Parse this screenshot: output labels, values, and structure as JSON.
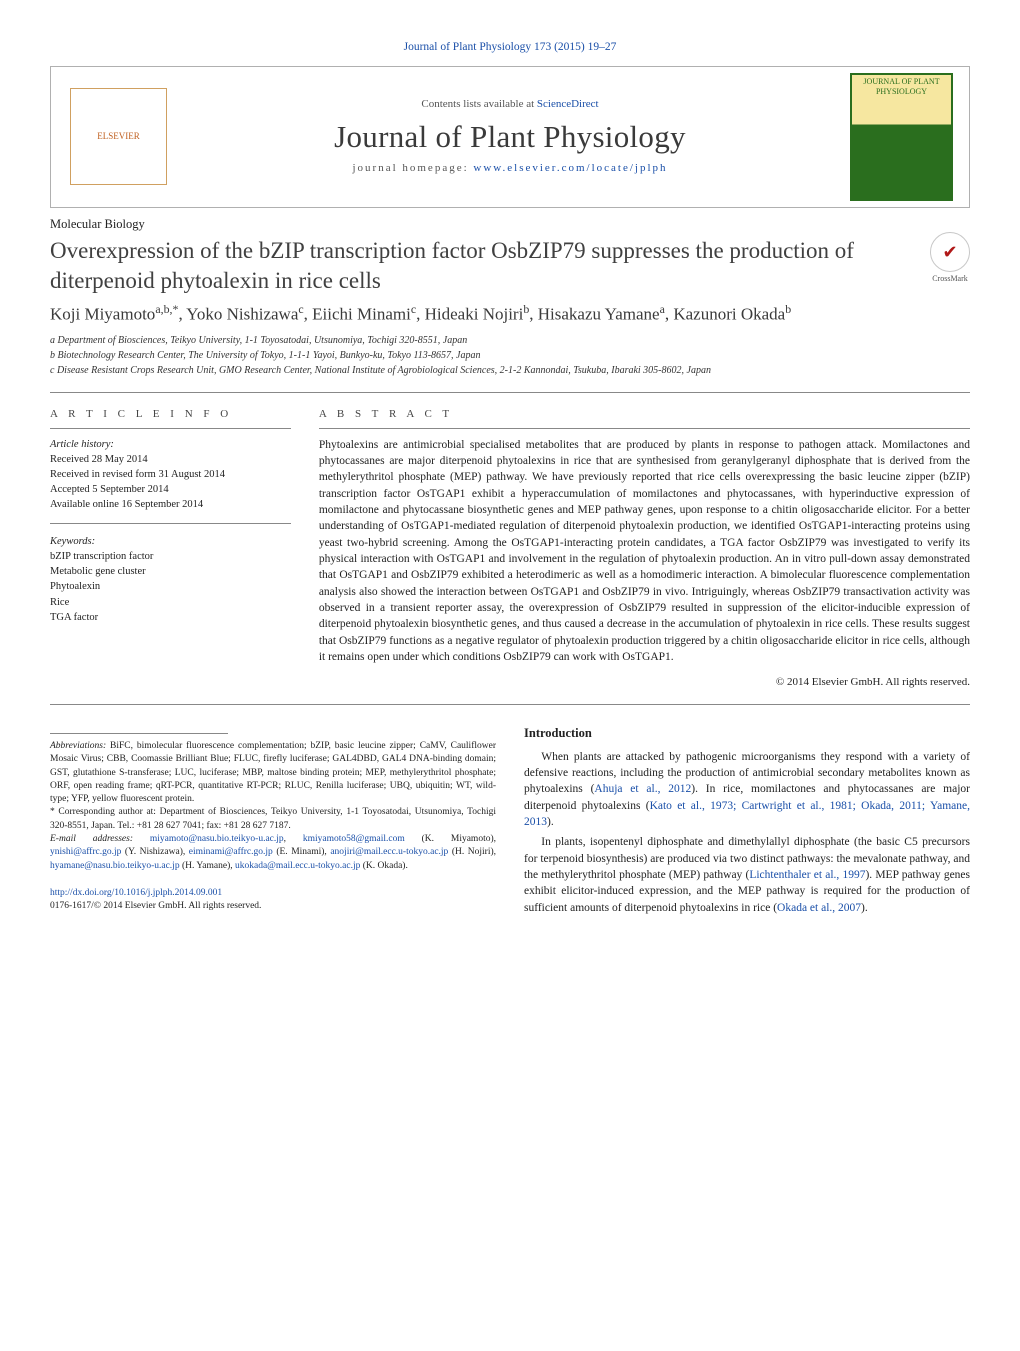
{
  "font_family_main": "Times New Roman, Georgia, serif",
  "colors": {
    "link": "#1a4fa8",
    "text": "#222222",
    "bg": "#ffffff",
    "rule": "#888888",
    "heading": "#404040",
    "journal_accent": "#2a6e1e"
  },
  "header": {
    "top_link": "Journal of Plant Physiology 173 (2015) 19–27",
    "contents_lists_prefix": "Contents lists available at ",
    "contents_lists_link": "ScienceDirect",
    "journal_title": "Journal of Plant Physiology",
    "homepage_prefix": "journal homepage: ",
    "homepage_url": "www.elsevier.com/locate/jplph",
    "publisher": "ELSEVIER",
    "cover_text": "JOURNAL OF PLANT PHYSIOLOGY"
  },
  "article": {
    "section_label": "Molecular Biology",
    "title": "Overexpression of the bZIP transcription factor OsbZIP79 suppresses the production of diterpenoid phytoalexin in rice cells",
    "crossmark": "CrossMark",
    "authors": "Koji Miyamoto",
    "authors_sup1": "a,b,*",
    "authors2": ", Yoko Nishizawa",
    "authors_sup2": "c",
    "authors3": ", Eiichi Minami",
    "authors_sup3": "c",
    "authors4": ", Hideaki Nojiri",
    "authors_sup4": "b",
    "authors5": ", Hisakazu Yamane",
    "authors_sup5": "a",
    "authors6": ", Kazunori Okada",
    "authors_sup6": "b",
    "affiliations": [
      "a Department of Biosciences, Teikyo University, 1-1 Toyosatodai, Utsunomiya, Tochigi 320-8551, Japan",
      "b Biotechnology Research Center, The University of Tokyo, 1-1-1 Yayoi, Bunkyo-ku, Tokyo 113-8657, Japan",
      "c Disease Resistant Crops Research Unit, GMO Research Center, National Institute of Agrobiological Sciences, 2-1-2 Kannondai, Tsukuba, Ibaraki 305-8602, Japan"
    ]
  },
  "article_info": {
    "section_head": "A R T I C L E   I N F O",
    "history_head": "Article history:",
    "history": [
      "Received 28 May 2014",
      "Received in revised form 31 August 2014",
      "Accepted 5 September 2014",
      "Available online 16 September 2014"
    ],
    "keywords_head": "Keywords:",
    "keywords": [
      "bZIP transcription factor",
      "Metabolic gene cluster",
      "Phytoalexin",
      "Rice",
      "TGA factor"
    ]
  },
  "abstract": {
    "section_head": "A B S T R A C T",
    "text": "Phytoalexins are antimicrobial specialised metabolites that are produced by plants in response to pathogen attack. Momilactones and phytocassanes are major diterpenoid phytoalexins in rice that are synthesised from geranylgeranyl diphosphate that is derived from the methylerythritol phosphate (MEP) pathway. We have previously reported that rice cells overexpressing the basic leucine zipper (bZIP) transcription factor OsTGAP1 exhibit a hyperaccumulation of momilactones and phytocassanes, with hyperinductive expression of momilactone and phytocassane biosynthetic genes and MEP pathway genes, upon response to a chitin oligosaccharide elicitor. For a better understanding of OsTGAP1-mediated regulation of diterpenoid phytoalexin production, we identified OsTGAP1-interacting proteins using yeast two-hybrid screening. Among the OsTGAP1-interacting protein candidates, a TGA factor OsbZIP79 was investigated to verify its physical interaction with OsTGAP1 and involvement in the regulation of phytoalexin production. An in vitro pull-down assay demonstrated that OsTGAP1 and OsbZIP79 exhibited a heterodimeric as well as a homodimeric interaction. A bimolecular fluorescence complementation analysis also showed the interaction between OsTGAP1 and OsbZIP79 in vivo. Intriguingly, whereas OsbZIP79 transactivation activity was observed in a transient reporter assay, the overexpression of OsbZIP79 resulted in suppression of the elicitor-inducible expression of diterpenoid phytoalexin biosynthetic genes, and thus caused a decrease in the accumulation of phytoalexin in rice cells. These results suggest that OsbZIP79 functions as a negative regulator of phytoalexin production triggered by a chitin oligosaccharide elicitor in rice cells, although it remains open under which conditions OsbZIP79 can work with OsTGAP1.",
    "copyright": "© 2014 Elsevier GmbH. All rights reserved."
  },
  "introduction": {
    "head": "Introduction",
    "paras": [
      {
        "text": "When plants are attacked by pathogenic microorganisms they respond with a variety of defensive reactions, including the production of antimicrobial secondary metabolites known as phytoalexins (",
        "link1": "Ahuja et al., 2012",
        "mid": "). In rice, momilactones and phytocassanes are major diterpenoid phytoalexins (",
        "link2": "Kato et al., 1973; Cartwright et al., 1981; Okada, 2011; Yamane, 2013",
        "tail": ")."
      },
      {
        "text": "In plants, isopentenyl diphosphate and dimethylallyl diphosphate (the basic C5 precursors for terpenoid biosynthesis) are produced via two distinct pathways: the mevalonate pathway, and the methylerythritol phosphate (MEP) pathway (",
        "link1": "Lichtenthaler et al., 1997",
        "mid": "). MEP pathway genes exhibit elicitor-induced expression, and the MEP pathway is required for the production of sufficient amounts of diterpenoid phytoalexins in rice (",
        "link2": "Okada et al., 2007",
        "tail": ")."
      }
    ]
  },
  "footnotes": {
    "abbrev_label": "Abbreviations:",
    "abbrev": " BiFC, bimolecular fluorescence complementation; bZIP, basic leucine zipper; CaMV, Cauliflower Mosaic Virus; CBB, Coomassie Brilliant Blue; FLUC, firefly luciferase; GAL4DBD, GAL4 DNA-binding domain; GST, glutathione S-transferase; LUC, luciferase; MBP, maltose binding protein; MEP, methylerythritol phosphate; ORF, open reading frame; qRT-PCR, quantitative RT-PCR; RLUC, Renilla luciferase; UBQ, ubiquitin; WT, wild-type; YFP, yellow fluorescent protein.",
    "corr_sym": "*",
    "corr": " Corresponding author at: Department of Biosciences, Teikyo University, 1-1 Toyosatodai, Utsunomiya, Tochigi 320-8551, Japan. Tel.: +81 28 627 7041; fax: +81 28 627 7187.",
    "email_label": "E-mail addresses: ",
    "emails": [
      {
        "addr": "miyamoto@nasu.bio.teikyo-u.ac.jp",
        "who": ", "
      },
      {
        "addr": "kmiyamoto58@gmail.com",
        "who": " (K. Miyamoto), "
      },
      {
        "addr": "ynishi@affrc.go.jp",
        "who": " (Y. Nishizawa), "
      },
      {
        "addr": "eiminami@affrc.go.jp",
        "who": " (E. Minami), "
      },
      {
        "addr": "anojiri@mail.ecc.u-tokyo.ac.jp",
        "who": " (H. Nojiri), "
      },
      {
        "addr": "hyamane@nasu.bio.teikyo-u.ac.jp",
        "who": " (H. Yamane), "
      },
      {
        "addr": "ukokada@mail.ecc.u-tokyo.ac.jp",
        "who": " (K. Okada)."
      }
    ]
  },
  "doi": {
    "url": "http://dx.doi.org/10.1016/j.jplph.2014.09.001",
    "issn": "0176-1617/© 2014 Elsevier GmbH. All rights reserved."
  }
}
